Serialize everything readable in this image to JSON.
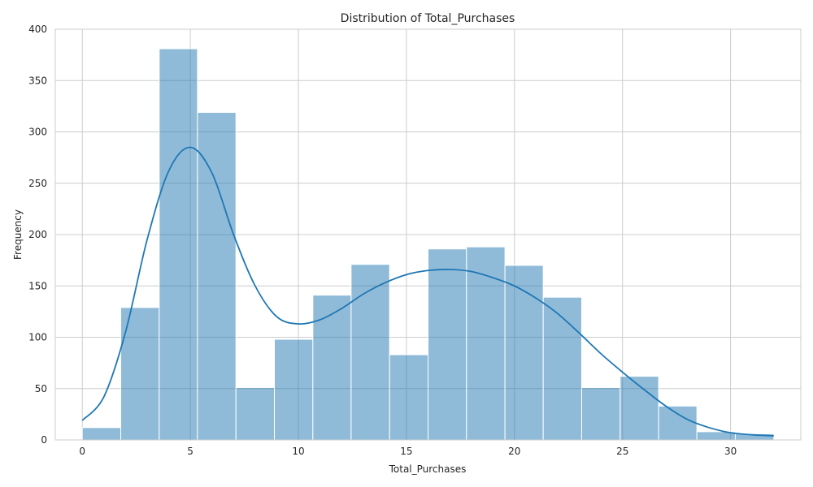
{
  "chart_data": {
    "type": "bar",
    "title": "Distribution of Total_Purchases",
    "xlabel": "Total_Purchases",
    "ylabel": "Frequency",
    "xlim": [
      -1.25,
      33.25
    ],
    "ylim": [
      0,
      400
    ],
    "xticks": [
      0,
      5,
      10,
      15,
      20,
      25,
      30
    ],
    "yticks": [
      0,
      50,
      100,
      150,
      200,
      250,
      300,
      350,
      400
    ],
    "grid": true,
    "bar_color": "#1f77b4",
    "kde_color": "#1f77b4",
    "bins": [
      {
        "x0": 0.0,
        "x1": 1.78,
        "count": 12
      },
      {
        "x0": 1.78,
        "x1": 3.56,
        "count": 129
      },
      {
        "x0": 3.56,
        "x1": 5.33,
        "count": 381
      },
      {
        "x0": 5.33,
        "x1": 7.11,
        "count": 319
      },
      {
        "x0": 7.11,
        "x1": 8.89,
        "count": 51
      },
      {
        "x0": 8.89,
        "x1": 10.67,
        "count": 98
      },
      {
        "x0": 10.67,
        "x1": 12.44,
        "count": 141
      },
      {
        "x0": 12.44,
        "x1": 14.22,
        "count": 171
      },
      {
        "x0": 14.22,
        "x1": 16.0,
        "count": 83
      },
      {
        "x0": 16.0,
        "x1": 17.78,
        "count": 186
      },
      {
        "x0": 17.78,
        "x1": 19.56,
        "count": 188
      },
      {
        "x0": 19.56,
        "x1": 21.33,
        "count": 170
      },
      {
        "x0": 21.33,
        "x1": 23.11,
        "count": 139
      },
      {
        "x0": 23.11,
        "x1": 24.89,
        "count": 51
      },
      {
        "x0": 24.89,
        "x1": 26.67,
        "count": 62
      },
      {
        "x0": 26.67,
        "x1": 28.44,
        "count": 33
      },
      {
        "x0": 28.44,
        "x1": 30.22,
        "count": 8
      },
      {
        "x0": 30.22,
        "x1": 32.0,
        "count": 6
      }
    ],
    "kde": {
      "x": [
        0,
        1,
        2,
        3,
        4,
        5,
        6,
        7,
        8,
        9,
        10,
        11,
        12,
        13,
        14,
        15,
        16,
        17,
        18,
        19,
        20,
        21,
        22,
        23,
        24,
        25,
        26,
        27,
        28,
        29,
        30,
        31,
        32
      ],
      "y": [
        19,
        42,
        105,
        195,
        262,
        285,
        260,
        200,
        150,
        120,
        113,
        117,
        128,
        142,
        153,
        161,
        165,
        166,
        164,
        158,
        150,
        138,
        123,
        104,
        84,
        66,
        49,
        33,
        20,
        12,
        7,
        5,
        4
      ]
    }
  }
}
